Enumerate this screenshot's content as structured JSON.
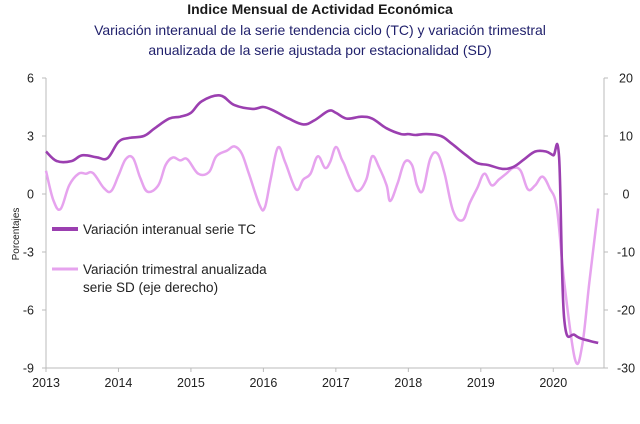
{
  "title": "Indice Mensual de  Actividad Económica",
  "subtitle_line1": "Variación interanual de la serie tendencia ciclo (TC) y variación trimestral",
  "subtitle_line2": "anualizada de la serie ajustada por estacionalidad (SD)",
  "chart_data": {
    "type": "line",
    "ylabel": "Porcentajes",
    "x_tick_labels": [
      "2013",
      "2014",
      "2015",
      "2016",
      "2017",
      "2018",
      "2019",
      "2020"
    ],
    "y_left_tick_labels": [
      "6",
      "3",
      "0",
      "-3",
      "-6",
      "-9"
    ],
    "y_right_tick_labels": [
      "20",
      "10",
      "0",
      "-10",
      "-20",
      "-30"
    ],
    "ylim_left": [
      -9,
      6
    ],
    "ylim_right": [
      -30,
      20
    ],
    "xlim": [
      2013.0,
      2020.7
    ],
    "colors": {
      "tc": "#9b3fb0",
      "sd": "#e6a3ee"
    },
    "legend": {
      "tc_line1": "Variación interanual serie TC",
      "sd_line1": "Variación trimestral anualizada",
      "sd_line2": "serie SD (eje derecho)"
    },
    "series": [
      {
        "name": "Variación interanual serie TC",
        "axis": "left",
        "points": [
          [
            2013.0,
            2.2
          ],
          [
            2013.15,
            1.7
          ],
          [
            2013.35,
            1.7
          ],
          [
            2013.5,
            2.0
          ],
          [
            2013.7,
            1.9
          ],
          [
            2013.85,
            1.85
          ],
          [
            2014.0,
            2.7
          ],
          [
            2014.15,
            2.9
          ],
          [
            2014.35,
            3.0
          ],
          [
            2014.5,
            3.4
          ],
          [
            2014.7,
            3.9
          ],
          [
            2014.85,
            4.0
          ],
          [
            2015.0,
            4.2
          ],
          [
            2015.15,
            4.8
          ],
          [
            2015.4,
            5.1
          ],
          [
            2015.6,
            4.6
          ],
          [
            2015.85,
            4.4
          ],
          [
            2016.0,
            4.5
          ],
          [
            2016.15,
            4.3
          ],
          [
            2016.35,
            3.9
          ],
          [
            2016.55,
            3.6
          ],
          [
            2016.7,
            3.8
          ],
          [
            2016.9,
            4.3
          ],
          [
            2017.0,
            4.2
          ],
          [
            2017.15,
            3.9
          ],
          [
            2017.35,
            4.0
          ],
          [
            2017.5,
            3.9
          ],
          [
            2017.7,
            3.4
          ],
          [
            2017.9,
            3.1
          ],
          [
            2018.0,
            3.1
          ],
          [
            2018.1,
            3.05
          ],
          [
            2018.25,
            3.1
          ],
          [
            2018.45,
            3.0
          ],
          [
            2018.6,
            2.6
          ],
          [
            2018.8,
            2.0
          ],
          [
            2018.95,
            1.6
          ],
          [
            2019.1,
            1.5
          ],
          [
            2019.3,
            1.3
          ],
          [
            2019.45,
            1.4
          ],
          [
            2019.6,
            1.8
          ],
          [
            2019.75,
            2.2
          ],
          [
            2019.9,
            2.2
          ],
          [
            2020.0,
            2.0
          ],
          [
            2020.08,
            1.9
          ],
          [
            2020.15,
            -6.4
          ],
          [
            2020.3,
            -7.3
          ],
          [
            2020.5,
            -7.6
          ],
          [
            2020.62,
            -7.7
          ]
        ]
      },
      {
        "name": "Variación trimestral anualizada serie SD (eje derecho)",
        "axis": "right",
        "points": [
          [
            2013.0,
            4.0
          ],
          [
            2013.1,
            -1.0
          ],
          [
            2013.2,
            -2.6
          ],
          [
            2013.32,
            1.5
          ],
          [
            2013.45,
            3.5
          ],
          [
            2013.55,
            3.5
          ],
          [
            2013.65,
            3.6
          ],
          [
            2013.8,
            1.0
          ],
          [
            2013.9,
            0.5
          ],
          [
            2014.0,
            3.2
          ],
          [
            2014.1,
            6.0
          ],
          [
            2014.2,
            6.2
          ],
          [
            2014.3,
            2.8
          ],
          [
            2014.4,
            0.4
          ],
          [
            2014.55,
            1.5
          ],
          [
            2014.65,
            5.0
          ],
          [
            2014.75,
            6.3
          ],
          [
            2014.85,
            5.8
          ],
          [
            2014.95,
            6.0
          ],
          [
            2015.1,
            3.5
          ],
          [
            2015.25,
            3.8
          ],
          [
            2015.35,
            6.5
          ],
          [
            2015.5,
            7.5
          ],
          [
            2015.6,
            8.2
          ],
          [
            2015.7,
            7.0
          ],
          [
            2015.8,
            3.5
          ],
          [
            2015.95,
            -2.0
          ],
          [
            2016.02,
            -2.3
          ],
          [
            2016.1,
            2.5
          ],
          [
            2016.2,
            8.0
          ],
          [
            2016.3,
            5.5
          ],
          [
            2016.45,
            0.8
          ],
          [
            2016.55,
            2.5
          ],
          [
            2016.65,
            3.5
          ],
          [
            2016.75,
            6.5
          ],
          [
            2016.85,
            4.5
          ],
          [
            2016.92,
            5.5
          ],
          [
            2017.0,
            8.1
          ],
          [
            2017.08,
            6.0
          ],
          [
            2017.12,
            5.0
          ],
          [
            2017.2,
            2.5
          ],
          [
            2017.3,
            0.5
          ],
          [
            2017.42,
            2.5
          ],
          [
            2017.5,
            6.5
          ],
          [
            2017.6,
            4.5
          ],
          [
            2017.7,
            1.5
          ],
          [
            2017.75,
            -1.2
          ],
          [
            2017.85,
            1.8
          ],
          [
            2017.95,
            5.5
          ],
          [
            2018.05,
            5.0
          ],
          [
            2018.12,
            1.5
          ],
          [
            2018.2,
            0.6
          ],
          [
            2018.3,
            6.0
          ],
          [
            2018.4,
            7.0
          ],
          [
            2018.5,
            3.5
          ],
          [
            2018.62,
            -3.0
          ],
          [
            2018.75,
            -4.5
          ],
          [
            2018.85,
            -1.5
          ],
          [
            2018.95,
            1.0
          ],
          [
            2019.05,
            3.5
          ],
          [
            2019.15,
            1.5
          ],
          [
            2019.25,
            2.5
          ],
          [
            2019.35,
            3.5
          ],
          [
            2019.45,
            4.5
          ],
          [
            2019.55,
            4.0
          ],
          [
            2019.65,
            0.8
          ],
          [
            2019.75,
            1.5
          ],
          [
            2019.85,
            3.0
          ],
          [
            2019.95,
            1.0
          ],
          [
            2020.05,
            -2.5
          ],
          [
            2020.15,
            -15.0
          ],
          [
            2020.3,
            -28.5
          ],
          [
            2020.4,
            -26.0
          ],
          [
            2020.5,
            -15.0
          ],
          [
            2020.62,
            -2.5
          ]
        ]
      }
    ]
  }
}
